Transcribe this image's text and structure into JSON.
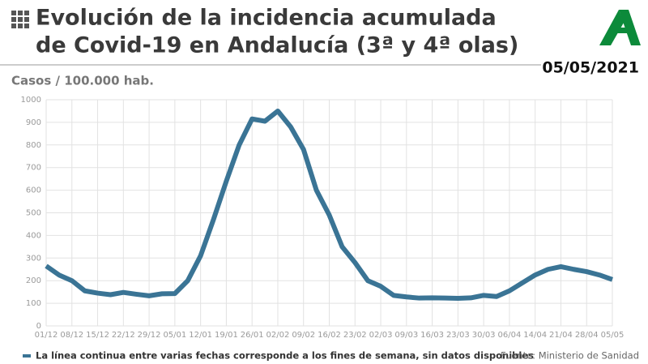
{
  "chart_data": {
    "type": "line",
    "title_lines": [
      "Evolución de la incidencia acumulada",
      "de Covid-19 en Andalucía (3ª y 4ª olas)"
    ],
    "date": "05/05/2021",
    "y_label": "Casos / 100.000 hab.",
    "note": "La línea continua entre varias fechas corresponde a los fines de semana, sin datos disponibles",
    "source": "Fuente: Ministerio de Sanidad",
    "categories": [
      "01/12",
      null,
      "08/12",
      null,
      "15/12",
      null,
      "22/12",
      null,
      "29/12",
      null,
      "05/01",
      null,
      "12/01",
      null,
      "19/01",
      null,
      "26/01",
      null,
      "02/02",
      null,
      "09/02",
      null,
      "16/02",
      null,
      "23/02",
      null,
      "02/03",
      null,
      "09/03",
      null,
      "16/03",
      null,
      "23/03",
      null,
      "30/03",
      null,
      "06/04",
      null,
      "14/04",
      null,
      "21/04",
      null,
      "28/04",
      null,
      "05/05"
    ],
    "series": [
      {
        "name": "Incidencia acumulada",
        "color": "#3a7495",
        "values": [
          265,
          225,
          200,
          155,
          145,
          138,
          148,
          140,
          133,
          142,
          143,
          200,
          310,
          470,
          640,
          800,
          915,
          905,
          950,
          880,
          780,
          600,
          490,
          350,
          280,
          200,
          175,
          135,
          128,
          123,
          124,
          123,
          122,
          124,
          135,
          130,
          155,
          190,
          225,
          250,
          262,
          250,
          240,
          225,
          205
        ]
      }
    ],
    "ylim": [
      0,
      1000
    ],
    "yticks": [
      0,
      100,
      200,
      300,
      400,
      500,
      600,
      700,
      800,
      900,
      1000
    ],
    "grid": true
  }
}
